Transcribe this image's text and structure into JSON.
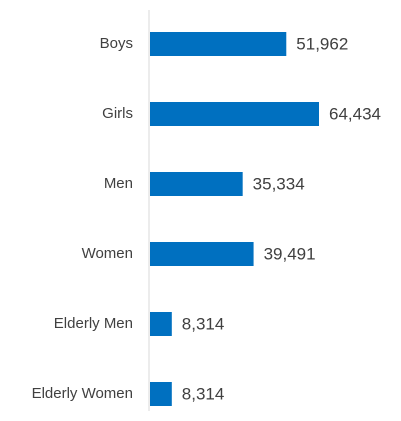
{
  "chart_data": {
    "type": "bar",
    "orientation": "horizontal",
    "categories": [
      "Boys",
      "Girls",
      "Men",
      "Women",
      "Elderly Men",
      "Elderly Women"
    ],
    "values": [
      51962,
      64434,
      35334,
      39491,
      8314,
      8314
    ],
    "value_labels": [
      "51,962",
      "64,434",
      "35,334",
      "39,491",
      "8,314",
      "8,314"
    ],
    "color": "#0070c0"
  }
}
